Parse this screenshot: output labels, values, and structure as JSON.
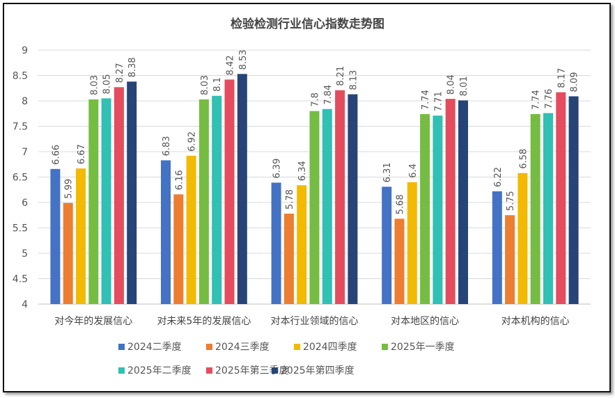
{
  "chart_data": {
    "type": "bar",
    "title": "检验检测行业信心指数走势图",
    "categories": [
      "对今年的发展信心",
      "对未来5年的发展信心",
      "对本行业领域的信心",
      "对本地区的信心",
      "对本机构的信心"
    ],
    "ylim": [
      4,
      9
    ],
    "yticks": [
      "4",
      "4.5",
      "5",
      "5.5",
      "6",
      "6.5",
      "7",
      "7.5",
      "8",
      "8.5",
      "9"
    ],
    "grid": true,
    "legend_position": "bottom",
    "series": [
      {
        "name": "2024二季度",
        "color": "#4472C4",
        "values": [
          6.66,
          6.83,
          6.39,
          6.31,
          6.22
        ]
      },
      {
        "name": "2024三季度",
        "color": "#ED7D31",
        "values": [
          5.99,
          6.16,
          5.78,
          5.68,
          5.75
        ]
      },
      {
        "name": "2024四季度",
        "color": "#F2BA02",
        "values": [
          6.67,
          6.92,
          6.34,
          6.4,
          6.58
        ]
      },
      {
        "name": "2025年一季度",
        "color": "#75BD42",
        "values": [
          8.03,
          8.03,
          7.8,
          7.74,
          7.74
        ]
      },
      {
        "name": "2025年二季度",
        "color": "#30C0B4",
        "values": [
          8.05,
          8.1,
          7.84,
          7.71,
          7.76
        ]
      },
      {
        "name": "2025年第三季度",
        "color": "#E54C5E",
        "values": [
          8.27,
          8.42,
          8.21,
          8.04,
          8.17
        ]
      },
      {
        "name": "2025年第四季度",
        "color": "#264478",
        "values": [
          8.38,
          8.53,
          8.13,
          8.01,
          8.09
        ]
      }
    ]
  }
}
